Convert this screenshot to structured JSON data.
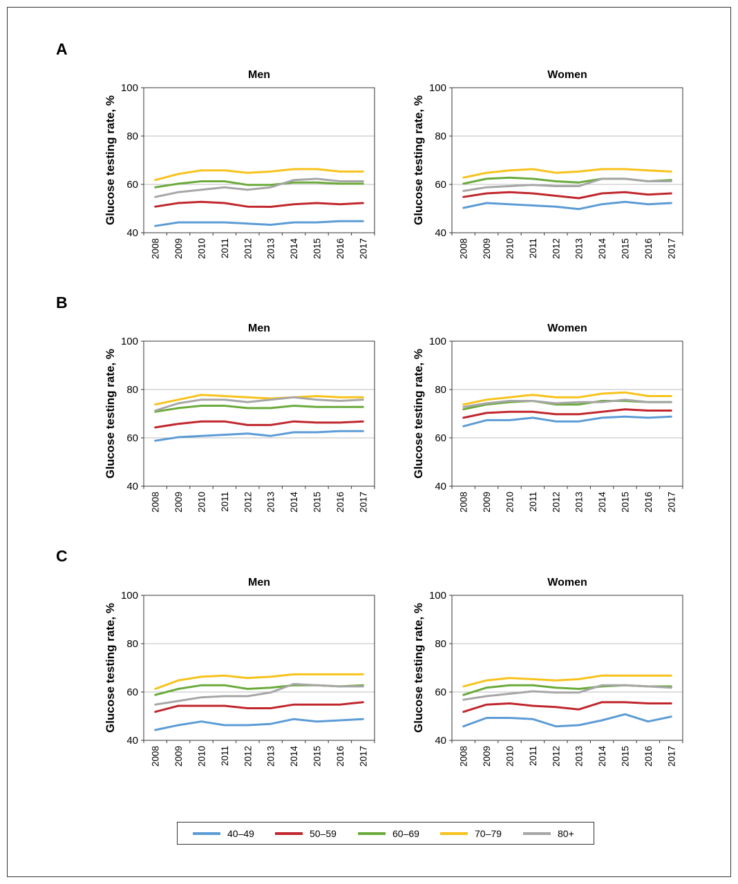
{
  "panels": [
    {
      "letter": "A"
    },
    {
      "letter": "B"
    },
    {
      "letter": "C"
    }
  ],
  "legend": [
    {
      "label": "40–49",
      "color": "#5b9bd5"
    },
    {
      "label": "50–59",
      "color": "#c0262d"
    },
    {
      "label": "60–69",
      "color": "#6aaa3a"
    },
    {
      "label": "70–79",
      "color": "#f8c21a"
    },
    {
      "label": "80+",
      "color": "#a6a6a6"
    }
  ],
  "chart_data": [
    {
      "type": "line",
      "panel": "A",
      "title": "Men",
      "ylabel": "Glucose testing rate, %",
      "ylim": [
        40,
        100
      ],
      "yticks": [
        40,
        60,
        80,
        100
      ],
      "x": [
        "2008",
        "2009",
        "2010",
        "2011",
        "2012",
        "2013",
        "2014",
        "2015",
        "2016",
        "2017"
      ],
      "series": [
        {
          "name": "40–49",
          "values": [
            42.8,
            44.3,
            44.3,
            44.3,
            43.8,
            43.3,
            44.3,
            44.3,
            44.8,
            44.8
          ]
        },
        {
          "name": "50–59",
          "values": [
            50.8,
            52.3,
            52.8,
            52.3,
            50.8,
            50.7,
            51.8,
            52.3,
            51.8,
            52.3
          ]
        },
        {
          "name": "60–69",
          "values": [
            58.8,
            60.3,
            61.3,
            61.3,
            59.8,
            59.8,
            60.8,
            60.8,
            60.3,
            60.3
          ]
        },
        {
          "name": "70–79",
          "values": [
            61.8,
            64.3,
            65.8,
            65.8,
            64.8,
            65.3,
            66.3,
            66.3,
            65.3,
            65.3
          ]
        },
        {
          "name": "80+",
          "values": [
            54.8,
            56.8,
            57.8,
            58.8,
            57.8,
            58.8,
            61.8,
            62.3,
            61.3,
            61.3
          ]
        }
      ]
    },
    {
      "type": "line",
      "panel": "A",
      "title": "Women",
      "ylabel": "Glucose testing rate, %",
      "ylim": [
        40,
        100
      ],
      "yticks": [
        40,
        60,
        80,
        100
      ],
      "x": [
        "2008",
        "2009",
        "2010",
        "2011",
        "2012",
        "2013",
        "2014",
        "2015",
        "2016",
        "2017"
      ],
      "series": [
        {
          "name": "40–49",
          "values": [
            50.3,
            52.3,
            51.8,
            51.3,
            50.8,
            49.8,
            51.8,
            52.8,
            51.8,
            52.3
          ]
        },
        {
          "name": "50–59",
          "values": [
            54.8,
            56.3,
            56.8,
            56.3,
            55.3,
            54.3,
            56.3,
            56.8,
            55.8,
            56.3
          ]
        },
        {
          "name": "60–69",
          "values": [
            60.3,
            62.3,
            62.8,
            62.3,
            61.3,
            60.8,
            62.3,
            62.3,
            61.3,
            61.8
          ]
        },
        {
          "name": "70–79",
          "values": [
            62.8,
            64.8,
            65.8,
            66.3,
            64.8,
            65.3,
            66.3,
            66.3,
            65.8,
            65.3
          ]
        },
        {
          "name": "80+",
          "values": [
            57.3,
            58.8,
            59.3,
            59.8,
            59.3,
            59.3,
            62.3,
            62.3,
            61.3,
            61.3
          ]
        }
      ]
    },
    {
      "type": "line",
      "panel": "B",
      "title": "Men",
      "ylabel": "Glucose testing rate, %",
      "ylim": [
        40,
        100
      ],
      "yticks": [
        40,
        60,
        80,
        100
      ],
      "x": [
        "2008",
        "2009",
        "2010",
        "2011",
        "2012",
        "2013",
        "2014",
        "2015",
        "2016",
        "2017"
      ],
      "series": [
        {
          "name": "40–49",
          "values": [
            58.8,
            60.3,
            60.8,
            61.3,
            61.8,
            60.8,
            62.3,
            62.3,
            62.8,
            62.8
          ]
        },
        {
          "name": "50–59",
          "values": [
            64.3,
            65.8,
            66.8,
            66.8,
            65.3,
            65.3,
            66.8,
            66.3,
            66.3,
            66.8
          ]
        },
        {
          "name": "60–69",
          "values": [
            70.8,
            72.3,
            73.3,
            73.3,
            72.3,
            72.3,
            73.3,
            72.8,
            72.8,
            72.8
          ]
        },
        {
          "name": "70–79",
          "values": [
            73.8,
            75.8,
            77.8,
            77.3,
            76.8,
            76.3,
            76.8,
            77.3,
            76.8,
            76.8
          ]
        },
        {
          "name": "80+",
          "values": [
            71.3,
            74.3,
            75.8,
            75.8,
            74.8,
            75.8,
            76.8,
            75.8,
            75.3,
            75.8
          ]
        }
      ]
    },
    {
      "type": "line",
      "panel": "B",
      "title": "Women",
      "ylabel": "Glucose testing rate, %",
      "ylim": [
        40,
        100
      ],
      "yticks": [
        40,
        60,
        80,
        100
      ],
      "x": [
        "2008",
        "2009",
        "2010",
        "2011",
        "2012",
        "2013",
        "2014",
        "2015",
        "2016",
        "2017"
      ],
      "series": [
        {
          "name": "40–49",
          "values": [
            64.8,
            67.3,
            67.3,
            68.3,
            66.8,
            66.8,
            68.3,
            68.8,
            68.3,
            68.8
          ]
        },
        {
          "name": "50–59",
          "values": [
            68.3,
            70.3,
            70.8,
            70.8,
            69.8,
            69.8,
            70.8,
            71.8,
            71.3,
            71.3
          ]
        },
        {
          "name": "60–69",
          "values": [
            71.8,
            73.8,
            74.8,
            75.3,
            73.8,
            73.8,
            75.3,
            75.3,
            74.8,
            74.8
          ]
        },
        {
          "name": "70–79",
          "values": [
            73.8,
            75.8,
            76.8,
            77.8,
            76.8,
            76.8,
            78.3,
            78.8,
            77.3,
            77.3
          ]
        },
        {
          "name": "80+",
          "values": [
            72.8,
            74.3,
            75.3,
            75.3,
            74.3,
            74.8,
            74.8,
            75.8,
            74.8,
            74.8
          ]
        }
      ]
    },
    {
      "type": "line",
      "panel": "C",
      "title": "Men",
      "ylabel": "Glucose testing rate, %",
      "ylim": [
        40,
        100
      ],
      "yticks": [
        40,
        60,
        80,
        100
      ],
      "x": [
        "2008",
        "2009",
        "2010",
        "2011",
        "2012",
        "2013",
        "2014",
        "2015",
        "2016",
        "2017"
      ],
      "series": [
        {
          "name": "40–49",
          "values": [
            44.3,
            46.3,
            47.8,
            46.3,
            46.3,
            46.8,
            48.8,
            47.8,
            48.3,
            48.8
          ]
        },
        {
          "name": "50–59",
          "values": [
            51.8,
            54.3,
            54.3,
            54.3,
            53.3,
            53.3,
            54.8,
            54.8,
            54.8,
            55.8
          ]
        },
        {
          "name": "60–69",
          "values": [
            58.8,
            61.3,
            62.8,
            62.8,
            61.3,
            61.8,
            62.8,
            62.8,
            62.3,
            62.8
          ]
        },
        {
          "name": "70–79",
          "values": [
            61.3,
            64.8,
            66.3,
            66.8,
            65.8,
            66.3,
            67.3,
            67.3,
            67.3,
            67.3
          ]
        },
        {
          "name": "80+",
          "values": [
            54.8,
            56.3,
            57.8,
            58.3,
            58.3,
            59.8,
            63.3,
            62.8,
            62.3,
            62.3
          ]
        }
      ]
    },
    {
      "type": "line",
      "panel": "C",
      "title": "Women",
      "ylabel": "Glucose testing rate, %",
      "ylim": [
        40,
        100
      ],
      "yticks": [
        40,
        60,
        80,
        100
      ],
      "x": [
        "2008",
        "2009",
        "2010",
        "2011",
        "2012",
        "2013",
        "2014",
        "2015",
        "2016",
        "2017"
      ],
      "series": [
        {
          "name": "40–49",
          "values": [
            45.8,
            49.3,
            49.3,
            48.8,
            45.8,
            46.3,
            48.3,
            50.8,
            47.8,
            49.8
          ]
        },
        {
          "name": "50–59",
          "values": [
            51.8,
            54.8,
            55.3,
            54.3,
            53.8,
            52.8,
            55.8,
            55.8,
            55.3,
            55.3
          ]
        },
        {
          "name": "60–69",
          "values": [
            58.8,
            61.8,
            62.8,
            62.8,
            61.8,
            61.3,
            62.3,
            62.8,
            62.3,
            62.3
          ]
        },
        {
          "name": "70–79",
          "values": [
            62.3,
            64.8,
            65.8,
            65.3,
            64.8,
            65.3,
            66.8,
            66.8,
            66.8,
            66.8
          ]
        },
        {
          "name": "80+",
          "values": [
            56.8,
            58.3,
            59.3,
            60.3,
            59.8,
            59.8,
            62.8,
            62.8,
            62.3,
            61.8
          ]
        }
      ]
    }
  ]
}
